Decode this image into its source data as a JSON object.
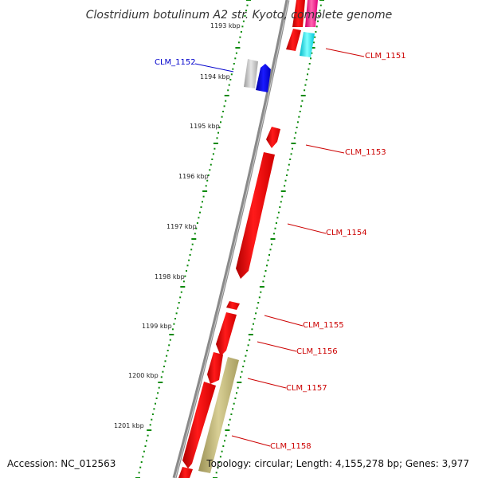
{
  "title": "Clostridium botulinum A2 str. Kyoto, complete genome",
  "footer": {
    "accession": "Accession: NC_012563",
    "summary": "Topology: circular; Length: 4,155,278 bp; Genes: 3,977"
  },
  "colors": {
    "backbone": "#8a8a8a",
    "tick": "#0a8a0a",
    "forward_gene": "#ff0000",
    "reverse_gene": "#0000ff",
    "other_feature": "#b5aa6a",
    "label_red": "#cc0000",
    "label_blue": "#0000cc"
  },
  "ticks": [
    {
      "label": "1193 kbp"
    },
    {
      "label": "1194 kbp"
    },
    {
      "label": "1195 kbp"
    },
    {
      "label": "1196 kbp"
    },
    {
      "label": "1197 kbp"
    },
    {
      "label": "1198 kbp"
    },
    {
      "label": "1199 kbp"
    },
    {
      "label": "1200 kbp"
    },
    {
      "label": "1201 kbp"
    }
  ],
  "gene_labels": [
    {
      "text": "CLM_1151",
      "color": "#cc0000"
    },
    {
      "text": "CLM_1152",
      "color": "#0000cc"
    },
    {
      "text": "CLM_1153",
      "color": "#cc0000"
    },
    {
      "text": "CLM_1154",
      "color": "#cc0000"
    },
    {
      "text": "CLM_1155",
      "color": "#cc0000"
    },
    {
      "text": "CLM_1156",
      "color": "#cc0000"
    },
    {
      "text": "CLM_1157",
      "color": "#cc0000"
    },
    {
      "text": "CLM_1158",
      "color": "#cc0000"
    }
  ]
}
